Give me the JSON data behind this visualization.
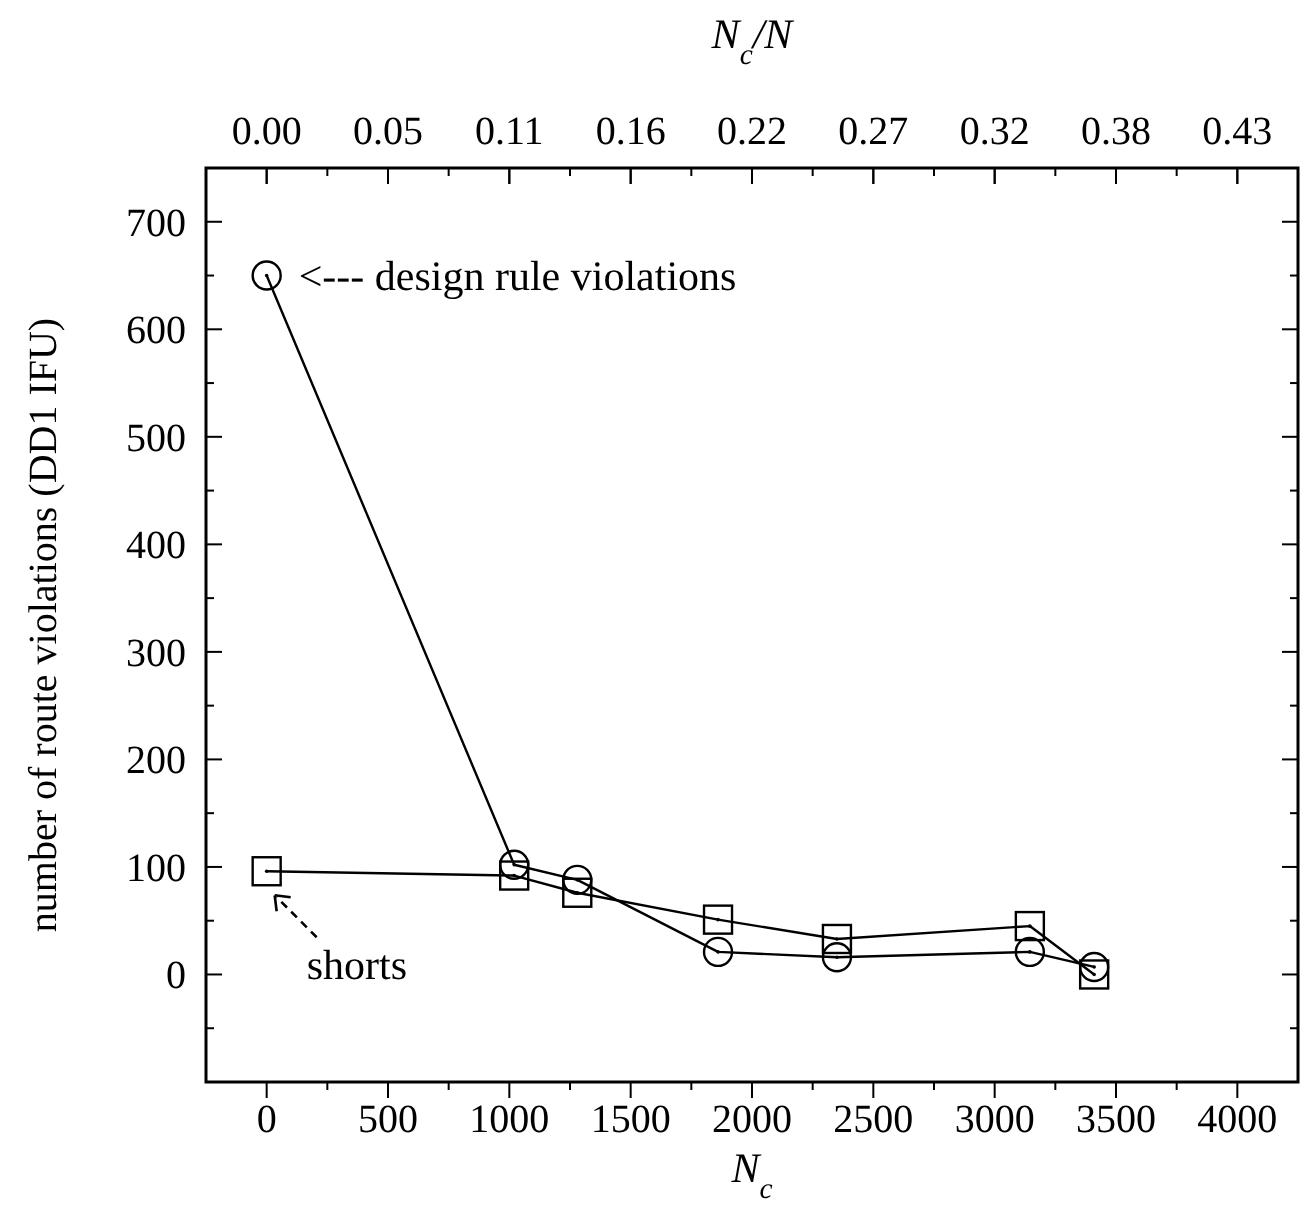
{
  "chart_data": {
    "type": "line",
    "xlabel": "N$_{c}$",
    "x2label": "N$_{c}$/N",
    "ylabel": "number of route violations (DD1 IFU)",
    "xlim": [
      -250,
      4250
    ],
    "xticks": [
      0,
      {
        "value": 250,
        "label": null
      },
      500,
      {
        "value": 750,
        "label": null
      },
      1000,
      {
        "value": 1250,
        "label": null
      },
      1500,
      {
        "value": 1750,
        "label": null
      },
      2000,
      {
        "value": 2250,
        "label": null
      },
      2500,
      {
        "value": 2750,
        "label": null
      },
      3000,
      {
        "value": 3250,
        "label": null
      },
      3500,
      {
        "value": 3750,
        "label": null
      },
      4000
    ],
    "x2lim": [
      -0.02705,
      0.45985
    ],
    "x2ticks": [
      {
        "value": 0,
        "label": "0.00"
      },
      {
        "value": 0.0541,
        "label": "0.05"
      },
      {
        "value": 0.1082,
        "label": "0.11"
      },
      {
        "value": 0.1623,
        "label": "0.16"
      },
      {
        "value": 0.2164,
        "label": "0.22"
      },
      {
        "value": 0.2705,
        "label": "0.27"
      },
      {
        "value": 0.3246,
        "label": "0.32"
      },
      {
        "value": 0.3787,
        "label": "0.38"
      },
      {
        "value": 0.4328,
        "label": "0.43"
      }
    ],
    "ylim": [
      -100,
      750
    ],
    "yticks": [
      {
        "value": -50,
        "label": null
      },
      0,
      {
        "value": 50,
        "label": null
      },
      100,
      {
        "value": 150,
        "label": null
      },
      200,
      {
        "value": 250,
        "label": null
      },
      300,
      {
        "value": 350,
        "label": null
      },
      400,
      {
        "value": 450,
        "label": null
      },
      500,
      {
        "value": 550,
        "label": null
      },
      600,
      {
        "value": 650,
        "label": null
      },
      700
    ],
    "grid": false,
    "line_style": "solid",
    "x": [
      0,
      1020,
      1280,
      1860,
      2350,
      3145,
      3410
    ],
    "series": [
      {
        "color": "#000000",
        "marker": "circle",
        "values": [
          650,
          102,
          88,
          21,
          16,
          21,
          7
        ]
      },
      {
        "color": "#000000",
        "marker": "square",
        "values": [
          96,
          92,
          76,
          51,
          33,
          45,
          0
        ]
      }
    ],
    "annotations": [
      {
        "text": "<--- design rule violations",
        "x": 0,
        "y": 650
      },
      {
        "text": "shorts",
        "x": 0,
        "y": 96
      }
    ]
  }
}
